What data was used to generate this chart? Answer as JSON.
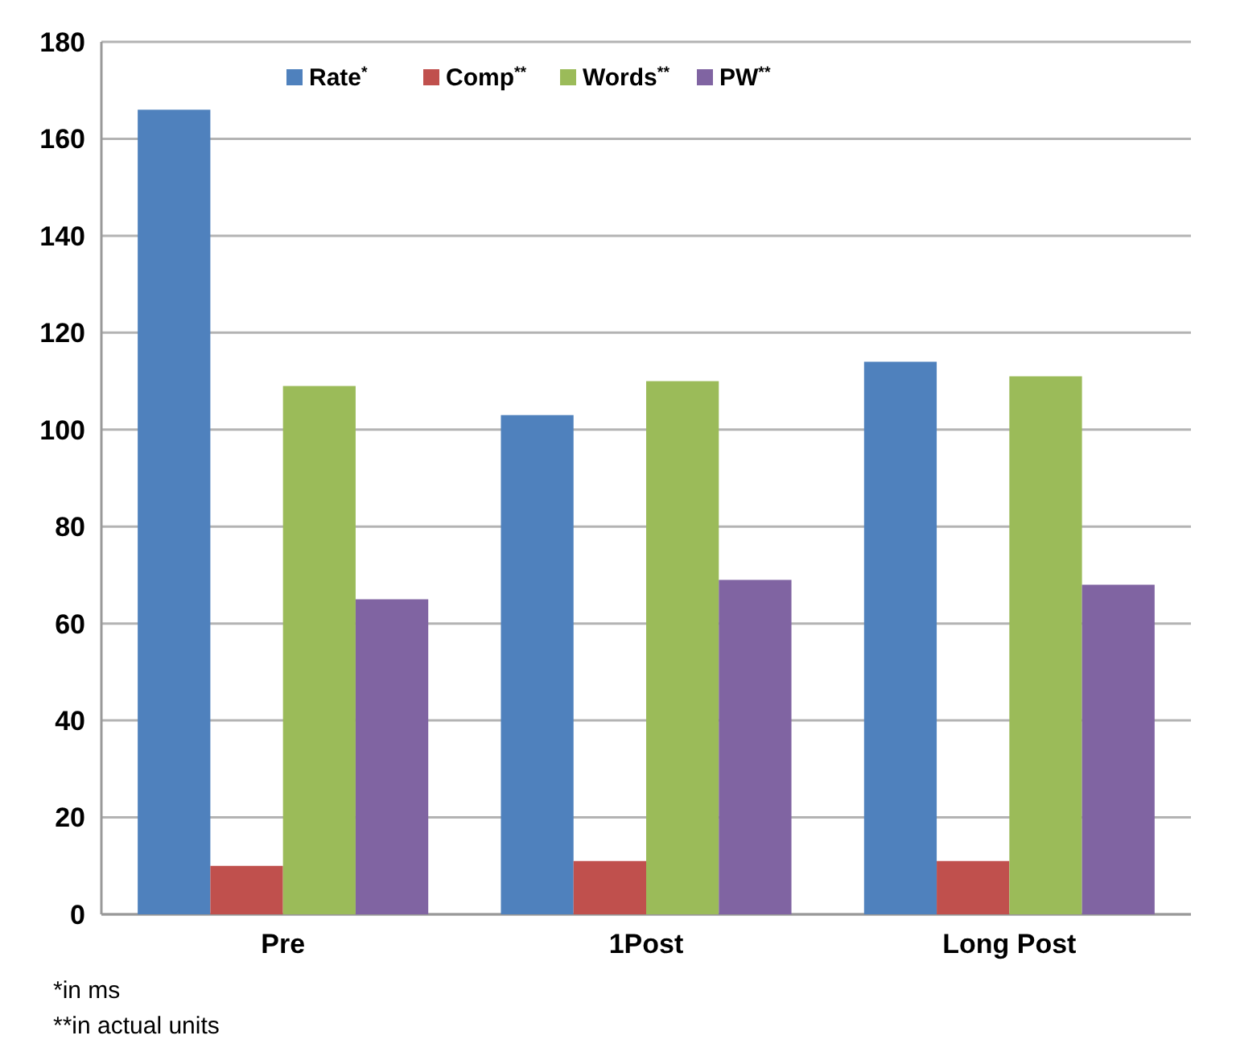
{
  "chart_data": {
    "type": "bar",
    "categories": [
      "Pre",
      "1Post",
      "Long Post"
    ],
    "series": [
      {
        "name": "Rate$^{*}$",
        "color": "#4f81bd",
        "values": [
          166,
          103,
          114
        ]
      },
      {
        "name": "Comp$^{**}$",
        "color": "#c0504d",
        "values": [
          10,
          11,
          11
        ]
      },
      {
        "name": "Words$^{**}$",
        "color": "#9bbb59",
        "values": [
          109,
          110,
          111
        ]
      },
      {
        "name": "PW$^{**}$",
        "color": "#8064a2",
        "values": [
          65,
          69,
          68
        ]
      }
    ],
    "ylim": [
      0,
      180
    ],
    "yticks": [
      0,
      20,
      40,
      60,
      80,
      100,
      120,
      140,
      160,
      180
    ],
    "grid": "y",
    "legend": "top",
    "annotations": [
      "*in ms",
      "**in actual units"
    ]
  }
}
